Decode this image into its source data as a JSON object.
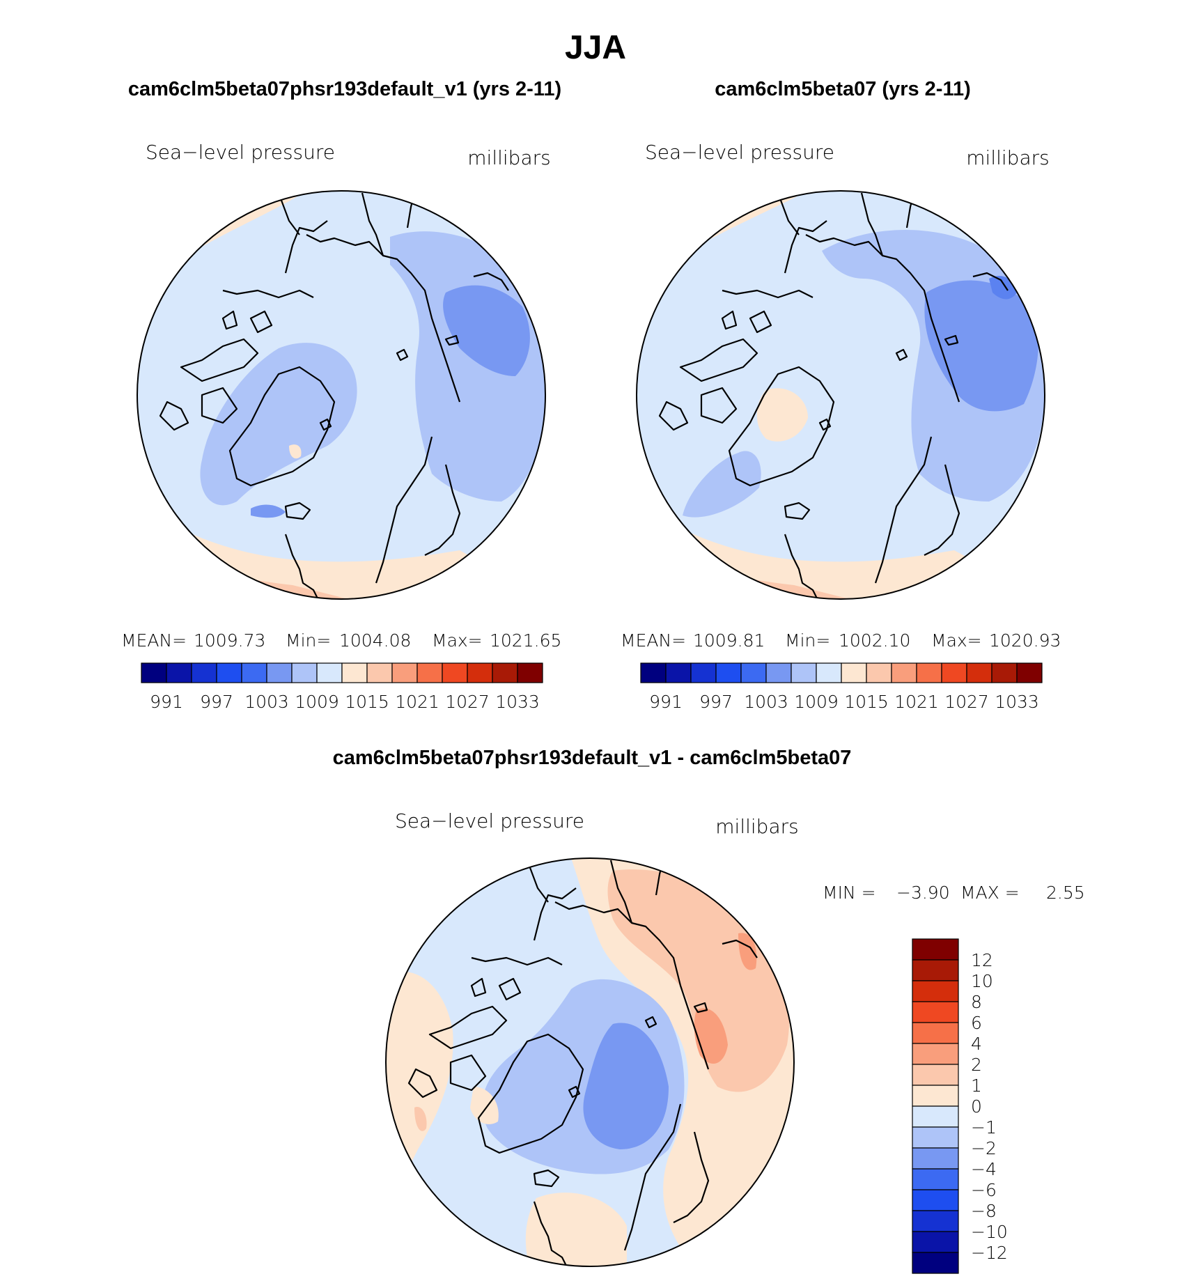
{
  "figure_title": "JJA",
  "panels": [
    {
      "case_title": "cam6clm5beta07phsr193default_v1 (yrs 2-11)",
      "variable_label": "Sea−level pressure",
      "units_label": "millibars",
      "stats": {
        "mean_label": "MEAN=",
        "mean": "1009.73",
        "min_label": "Min=",
        "min": "1004.08",
        "max_label": "Max=",
        "max": "1021.65"
      }
    },
    {
      "case_title": "cam6clm5beta07 (yrs 2-11)",
      "variable_label": "Sea−level pressure",
      "units_label": "millibars",
      "stats": {
        "mean_label": "MEAN=",
        "mean": "1009.81",
        "min_label": "Min=",
        "min": "1002.10",
        "max_label": "Max=",
        "max": "1020.93"
      }
    }
  ],
  "abs_colorbar": {
    "tick_labels": [
      "991",
      "997",
      "1003",
      "1009",
      "1015",
      "1021",
      "1027",
      "1033"
    ],
    "colors": [
      "#00007f",
      "#0a14a8",
      "#1532d2",
      "#1e4ef0",
      "#3c6af2",
      "#7898f2",
      "#aec4f8",
      "#d8e8fc",
      "#fde7d2",
      "#fbc8ad",
      "#f99e7c",
      "#f67048",
      "#ef4822",
      "#d42e0c",
      "#a81a06",
      "#7f0000"
    ]
  },
  "diff_panel": {
    "title": "cam6clm5beta07phsr193default_v1 - cam6clm5beta07",
    "variable_label": "Sea−level pressure",
    "units_label": "millibars",
    "stats": {
      "min_label": "MIN =",
      "min": "−3.90",
      "max_label": "MAX =",
      "max": "2.55"
    }
  },
  "diff_colorbar": {
    "tick_labels": [
      "12",
      "10",
      "8",
      "6",
      "4",
      "2",
      "1",
      "0",
      "−1",
      "−2",
      "−4",
      "−6",
      "−8",
      "−10",
      "−12"
    ],
    "colors": [
      "#7f0000",
      "#a81a06",
      "#d42e0c",
      "#ef4822",
      "#f67048",
      "#f99e7c",
      "#fbc8ad",
      "#fde7d2",
      "#d8e8fc",
      "#aec4f8",
      "#7898f2",
      "#3c6af2",
      "#1e4ef0",
      "#1532d2",
      "#0a14a8",
      "#00007f"
    ]
  },
  "map_colors": {
    "neg1": "#d8e8fc",
    "neg2": "#aec4f8",
    "neg3": "#7898f2",
    "neg4": "#5b82f0",
    "pos1": "#fde7d2",
    "pos2": "#fbc8ad",
    "pos3": "#f99e7c",
    "pos4": "#f67048"
  }
}
